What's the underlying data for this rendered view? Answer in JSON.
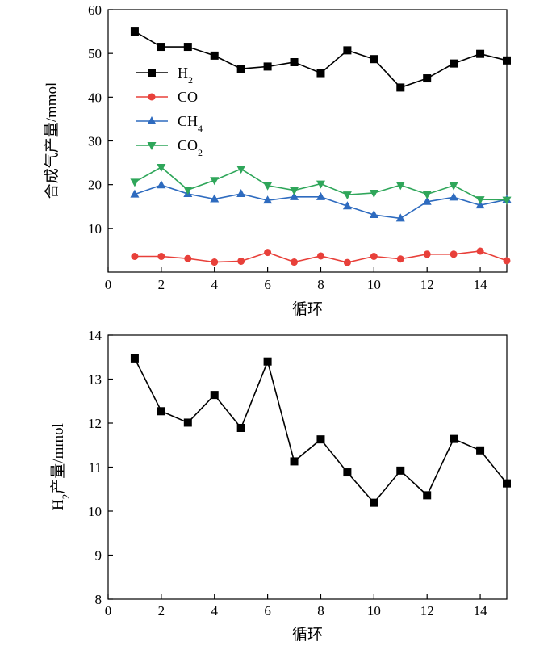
{
  "chart_data": [
    {
      "type": "line",
      "xlabel": "循环",
      "ylabel": "合成气产量/mmol",
      "xlim": [
        0,
        15
      ],
      "ylim": [
        0,
        60
      ],
      "x_ticks": [
        0,
        2,
        4,
        6,
        8,
        10,
        12,
        14
      ],
      "y_ticks": [
        10,
        20,
        30,
        40,
        50,
        60
      ],
      "legend_position": "top-left",
      "grid": false,
      "x": [
        1,
        2,
        3,
        4,
        5,
        6,
        7,
        8,
        9,
        10,
        11,
        12,
        13,
        14,
        15
      ],
      "series": [
        {
          "name": "H2",
          "legend_base": "H",
          "legend_sub": "2",
          "color": "#000000",
          "marker": "square",
          "values": [
            55.0,
            51.5,
            51.5,
            49.5,
            46.5,
            47.0,
            48.0,
            45.5,
            50.7,
            48.7,
            42.2,
            44.3,
            47.7,
            49.9,
            48.4
          ]
        },
        {
          "name": "CO",
          "legend_base": "CO",
          "legend_sub": "",
          "color": "#e8403a",
          "marker": "circle",
          "values": [
            3.6,
            3.6,
            3.1,
            2.3,
            2.5,
            4.5,
            2.3,
            3.7,
            2.2,
            3.6,
            3.0,
            4.1,
            4.1,
            4.8,
            2.6
          ]
        },
        {
          "name": "CH4",
          "legend_base": "CH",
          "legend_sub": "4",
          "color": "#2e6bbf",
          "marker": "triangle-up",
          "values": [
            17.8,
            19.9,
            17.9,
            16.7,
            17.9,
            16.4,
            17.2,
            17.2,
            15.1,
            13.1,
            12.3,
            16.1,
            17.1,
            15.3,
            16.6
          ]
        },
        {
          "name": "CO2",
          "legend_base": "CO",
          "legend_sub": "2",
          "color": "#2fa65a",
          "marker": "triangle-down",
          "values": [
            20.6,
            24.0,
            18.8,
            21.0,
            23.6,
            19.8,
            18.7,
            20.2,
            17.7,
            18.1,
            19.9,
            17.8,
            19.8,
            16.6,
            16.5
          ]
        }
      ]
    },
    {
      "type": "line",
      "xlabel": "循环",
      "ylabel_base": "H",
      "ylabel_sub": "2",
      "ylabel_rest": "产量/mmol",
      "xlim": [
        0,
        15
      ],
      "ylim": [
        8,
        14
      ],
      "x_ticks": [
        0,
        2,
        4,
        6,
        8,
        10,
        12,
        14
      ],
      "y_ticks": [
        8,
        9,
        10,
        11,
        12,
        13,
        14
      ],
      "grid": false,
      "x": [
        1,
        2,
        3,
        4,
        5,
        6,
        7,
        8,
        9,
        10,
        11,
        12,
        13,
        14,
        15
      ],
      "series": [
        {
          "color": "#000000",
          "marker": "square",
          "values": [
            13.47,
            12.27,
            12.01,
            12.64,
            11.89,
            13.4,
            11.13,
            11.63,
            10.88,
            10.19,
            10.92,
            10.36,
            11.64,
            11.38,
            10.63
          ]
        }
      ]
    }
  ]
}
